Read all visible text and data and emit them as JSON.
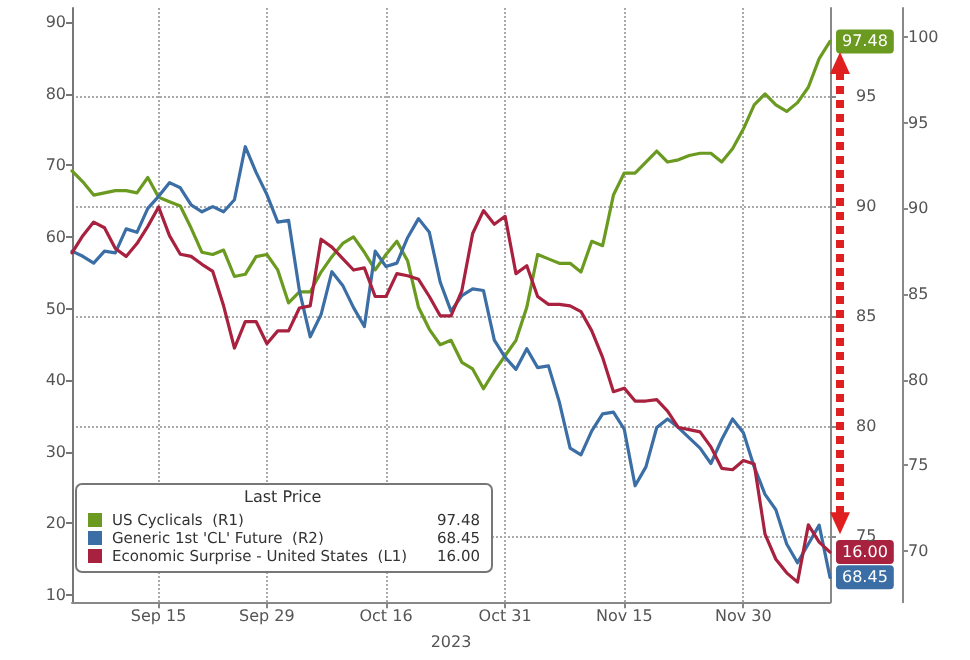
{
  "chart_data": {
    "type": "line",
    "xlabel": "2023",
    "legend_title": "Last Price",
    "categories": [
      null,
      null,
      null,
      null,
      null,
      null,
      null,
      null,
      "Sep 15",
      null,
      null,
      null,
      null,
      null,
      null,
      null,
      null,
      null,
      "Sep 29",
      null,
      null,
      null,
      null,
      null,
      null,
      null,
      null,
      null,
      null,
      "Oct 16",
      null,
      null,
      null,
      null,
      null,
      null,
      null,
      null,
      null,
      null,
      "Oct 31",
      null,
      null,
      null,
      null,
      null,
      null,
      null,
      null,
      null,
      null,
      "Nov 15",
      null,
      null,
      null,
      null,
      null,
      null,
      null,
      null,
      null,
      null,
      "Nov 30",
      null,
      null,
      null,
      null,
      null,
      null,
      null,
      null
    ],
    "series": [
      {
        "name": "US Cyclicals  (R1)",
        "color": "#6a9a1f",
        "axis": "y2",
        "values": [
          91.6,
          91.1,
          90.5,
          90.6,
          90.7,
          90.7,
          90.6,
          91.3,
          90.4,
          90.2,
          90.0,
          89.0,
          87.9,
          87.8,
          88.0,
          86.8,
          86.9,
          87.7,
          87.8,
          87.1,
          85.6,
          86.1,
          86.1,
          87.0,
          87.7,
          88.3,
          88.6,
          87.9,
          87.1,
          87.8,
          88.4,
          87.5,
          85.4,
          84.4,
          83.7,
          83.9,
          82.9,
          82.6,
          81.7,
          82.5,
          83.2,
          83.9,
          85.4,
          87.8,
          87.6,
          87.4,
          87.4,
          87.0,
          88.4,
          88.2,
          90.5,
          91.5,
          91.5,
          92.0,
          92.5,
          92.0,
          92.1,
          92.3,
          92.4,
          92.4,
          92.0,
          92.6,
          93.5,
          94.6,
          95.1,
          94.6,
          94.3,
          94.7,
          95.4,
          96.7,
          97.48
        ],
        "value_labels": [
          null,
          null,
          null,
          null,
          null,
          null,
          null,
          null,
          null,
          null,
          null,
          null,
          null,
          null,
          null,
          null,
          null,
          null,
          null,
          null,
          null,
          null,
          null,
          null,
          null,
          null,
          null,
          null,
          null,
          null,
          null,
          null,
          null,
          null,
          null,
          null,
          null,
          null,
          null,
          null,
          null,
          null,
          null,
          null,
          null,
          null,
          null,
          null,
          null,
          null,
          null,
          null,
          null,
          null,
          null,
          null,
          null,
          null,
          null,
          null,
          null,
          null,
          null,
          null,
          null,
          null,
          null,
          null,
          null,
          null,
          "97.48"
        ]
      },
      {
        "name": "Generic 1st 'CL' Future  (R2)",
        "color": "#3a6ea5",
        "axis": "y3",
        "values": [
          87.5,
          87.2,
          86.8,
          87.5,
          87.4,
          88.8,
          88.6,
          90.0,
          90.7,
          91.5,
          91.2,
          90.2,
          89.8,
          90.1,
          89.8,
          90.5,
          93.6,
          92.1,
          90.8,
          89.2,
          89.3,
          85.2,
          82.5,
          83.8,
          86.3,
          85.5,
          84.2,
          83.1,
          87.5,
          86.6,
          86.8,
          88.3,
          89.4,
          88.6,
          85.7,
          84.0,
          84.9,
          85.3,
          85.2,
          82.3,
          81.3,
          80.6,
          81.8,
          80.7,
          80.8,
          78.7,
          76.0,
          75.6,
          77.0,
          78.0,
          78.1,
          77.1,
          73.8,
          74.9,
          77.2,
          77.7,
          77.2,
          76.6,
          76.0,
          75.1,
          76.5,
          77.7,
          76.9,
          74.9,
          73.3,
          72.4,
          70.4,
          69.3,
          70.4,
          71.5,
          68.45
        ],
        "value_labels": [
          null,
          null,
          null,
          null,
          null,
          null,
          null,
          null,
          null,
          null,
          null,
          null,
          null,
          null,
          null,
          null,
          null,
          null,
          null,
          null,
          null,
          null,
          null,
          null,
          null,
          null,
          null,
          null,
          null,
          null,
          null,
          null,
          null,
          null,
          null,
          null,
          null,
          null,
          null,
          null,
          null,
          null,
          null,
          null,
          null,
          null,
          null,
          null,
          null,
          null,
          null,
          null,
          null,
          null,
          null,
          null,
          null,
          null,
          null,
          null,
          null,
          null,
          null,
          null,
          null,
          null,
          null,
          null,
          null,
          null,
          "68.45"
        ]
      },
      {
        "name": "Economic Surprise - United States  (L1)",
        "color": "#a8213f",
        "axis": "y",
        "values": [
          57.8,
          60.2,
          62.1,
          61.3,
          58.4,
          57.3,
          59.1,
          61.5,
          64.2,
          60.2,
          57.6,
          57.3,
          56.2,
          55.2,
          50.4,
          44.5,
          48.2,
          48.2,
          45.1,
          46.9,
          46.9,
          50.1,
          50.4,
          59.7,
          58.6,
          57.0,
          55.4,
          55.7,
          51.7,
          51.7,
          54.9,
          54.6,
          54.1,
          51.7,
          49.0,
          49.0,
          52.5,
          60.5,
          63.7,
          61.8,
          62.9,
          54.9,
          56.0,
          51.7,
          50.6,
          50.6,
          50.4,
          49.6,
          46.9,
          43.2,
          38.4,
          38.9,
          37.1,
          37.1,
          37.3,
          35.7,
          33.4,
          33.1,
          32.8,
          30.7,
          27.7,
          27.5,
          28.8,
          28.3,
          18.5,
          15.0,
          13.1,
          11.8,
          19.8,
          17.4,
          16.0
        ],
        "value_labels": [
          null,
          null,
          null,
          null,
          null,
          null,
          null,
          null,
          null,
          null,
          null,
          null,
          null,
          null,
          null,
          null,
          null,
          null,
          null,
          null,
          null,
          null,
          null,
          null,
          null,
          null,
          null,
          null,
          null,
          null,
          null,
          null,
          null,
          null,
          null,
          null,
          null,
          null,
          null,
          null,
          null,
          null,
          null,
          null,
          null,
          null,
          null,
          null,
          null,
          null,
          null,
          null,
          null,
          null,
          null,
          null,
          null,
          null,
          null,
          null,
          null,
          null,
          null,
          null,
          null,
          null,
          null,
          null,
          null,
          null,
          "16.00"
        ]
      }
    ],
    "ylim": [
      9,
      92
    ],
    "yticks": [
      10,
      20,
      30,
      40,
      50,
      60,
      70,
      80,
      90
    ],
    "y2lim": [
      72,
      99
    ],
    "y2ticks": [
      75,
      80,
      85,
      90,
      95
    ],
    "y3lim": [
      67,
      101.7
    ],
    "y3ticks": [
      70,
      75,
      80,
      85,
      90,
      95,
      100
    ],
    "annotations": [
      "97.48",
      "68.45",
      "16.00"
    ],
    "grid": true,
    "legend": "bottom left",
    "marker": "none",
    "line_style": "solid"
  }
}
